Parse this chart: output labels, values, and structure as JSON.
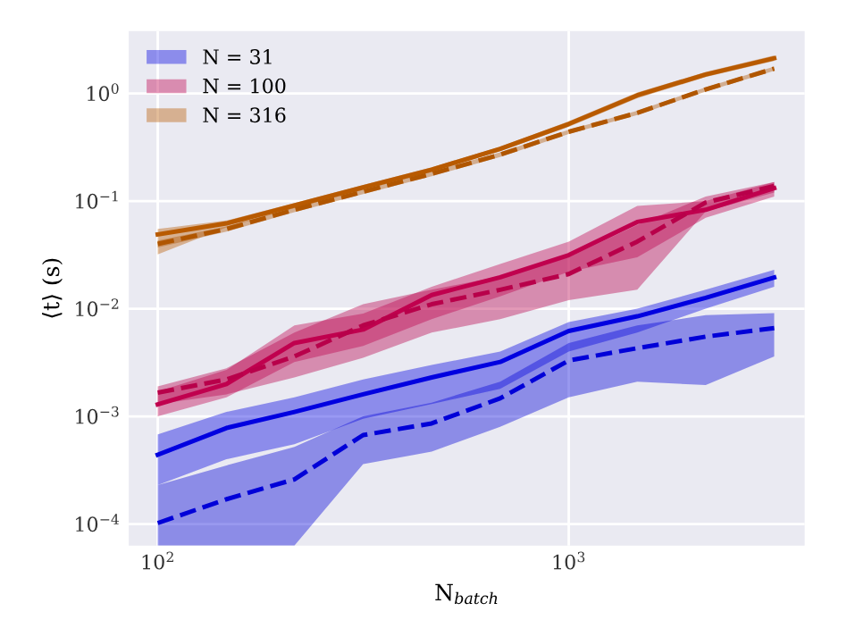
{
  "chart_data": {
    "type": "line",
    "xlabel": "N$_{batch}$",
    "ylabel": "⟨t⟩ (s)",
    "x": [
      100,
      147,
      215,
      316,
      464,
      681,
      1000,
      1468,
      2154,
      3162
    ],
    "series": [
      {
        "name": "N = 31",
        "color": "#0000e0",
        "line_style": "solid",
        "values": [
          0.00044,
          0.00078,
          0.0011,
          0.0016,
          0.0023,
          0.0032,
          0.0062,
          0.0085,
          0.0126,
          0.0195
        ],
        "lower": [
          0.00023,
          0.0004,
          0.00055,
          0.00095,
          0.0013,
          0.0018,
          0.004,
          0.006,
          0.01,
          0.016
        ],
        "upper": [
          0.00068,
          0.0011,
          0.0015,
          0.0022,
          0.003,
          0.004,
          0.0075,
          0.01,
          0.015,
          0.023
        ]
      },
      {
        "color": "#0000d8",
        "line_style": "dashed",
        "values": [
          0.000102,
          0.00017,
          0.00026,
          0.00067,
          0.00086,
          0.00147,
          0.0033,
          0.0043,
          0.0055,
          0.0066
        ],
        "lower": [
          6.3e-05,
          6.3e-05,
          6.3e-05,
          0.00036,
          0.00047,
          0.0008,
          0.0015,
          0.0021,
          0.00195,
          0.0036
        ],
        "upper": [
          0.00023,
          0.00035,
          0.00052,
          0.001,
          0.00134,
          0.0021,
          0.0048,
          0.007,
          0.0087,
          0.0091
        ]
      },
      {
        "name": "N = 100",
        "color": "#c0004e",
        "line_style": "solid",
        "values": [
          0.00129,
          0.002,
          0.0048,
          0.0064,
          0.0134,
          0.0196,
          0.0315,
          0.064,
          0.083,
          0.132
        ],
        "lower": [
          0.001,
          0.0015,
          0.0032,
          0.0045,
          0.008,
          0.013,
          0.022,
          0.03,
          0.07,
          0.11
        ],
        "upper": [
          0.0017,
          0.0027,
          0.007,
          0.009,
          0.016,
          0.026,
          0.042,
          0.09,
          0.1,
          0.15
        ]
      },
      {
        "color": "#b8004a",
        "line_style": "dashed",
        "values": [
          0.00166,
          0.0022,
          0.0036,
          0.007,
          0.011,
          0.015,
          0.021,
          0.042,
          0.097,
          0.138
        ],
        "lower": [
          0.0013,
          0.0016,
          0.0023,
          0.0035,
          0.006,
          0.008,
          0.012,
          0.015,
          0.08,
          0.12
        ],
        "upper": [
          0.0019,
          0.0028,
          0.006,
          0.011,
          0.015,
          0.02,
          0.03,
          0.06,
          0.11,
          0.15
        ]
      },
      {
        "name": "N = 316",
        "color": "#b85a00",
        "line_style": "solid",
        "values": [
          0.049,
          0.062,
          0.091,
          0.134,
          0.196,
          0.305,
          0.52,
          0.96,
          1.5,
          2.12
        ],
        "lower": [
          0.032,
          0.057,
          0.086,
          0.127,
          0.186,
          0.29,
          0.49,
          0.9,
          1.42,
          2.0
        ],
        "upper": [
          0.055,
          0.066,
          0.096,
          0.141,
          0.206,
          0.32,
          0.55,
          1.02,
          1.58,
          2.25
        ]
      },
      {
        "color": "#b05600",
        "line_style": "dashed",
        "values": [
          0.04,
          0.055,
          0.083,
          0.122,
          0.179,
          0.27,
          0.44,
          0.66,
          1.09,
          1.7
        ],
        "lower": [
          0.037,
          0.052,
          0.079,
          0.116,
          0.17,
          0.257,
          0.42,
          0.63,
          1.04,
          1.62
        ],
        "upper": [
          0.043,
          0.058,
          0.087,
          0.128,
          0.188,
          0.284,
          0.46,
          0.69,
          1.14,
          1.78
        ]
      }
    ],
    "log": "xy",
    "xlim": [
      85,
      3750
    ],
    "ylim": [
      6.3e-05,
      3.8
    ],
    "xticks": [
      {
        "value": 100,
        "label": "10$^{2}$"
      },
      {
        "value": 1000,
        "label": "10$^{3}$"
      }
    ],
    "yticks": [
      {
        "value": 0.0001,
        "label": "10$^{−4}$"
      },
      {
        "value": 0.001,
        "label": "10$^{−3}$"
      },
      {
        "value": 0.01,
        "label": "10$^{−2}$"
      },
      {
        "value": 0.1,
        "label": "10$^{−1}$"
      },
      {
        "value": 1,
        "label": "10$^{0}$"
      }
    ],
    "grid": true,
    "legend": "top left"
  }
}
